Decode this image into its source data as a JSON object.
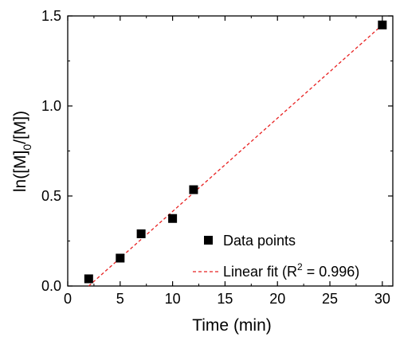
{
  "chart_data": {
    "type": "scatter",
    "xlabel": "Time (min)",
    "ylabel": {
      "main": "ln([M]",
      "sub": "0",
      "rest": "/[M])"
    },
    "xlim": [
      0,
      31
    ],
    "ylim": [
      0,
      1.5
    ],
    "x_ticks": [
      "0",
      "5",
      "10",
      "15",
      "20",
      "25",
      "30"
    ],
    "y_ticks": [
      "0.0",
      "0.5",
      "1.0",
      "1.5"
    ],
    "grid": false,
    "legend_position": "bottom-right",
    "series": [
      {
        "name": "Data points",
        "kind": "scatter",
        "color": "#000000",
        "marker": "square",
        "x": [
          2,
          5,
          7,
          10,
          12,
          30
        ],
        "y": [
          0.04,
          0.155,
          0.29,
          0.375,
          0.535,
          1.45
        ]
      },
      {
        "name": "Linear fit",
        "kind": "line",
        "color": "#e82020",
        "style": "dashed",
        "r_squared": "0.996",
        "x": [
          2,
          30
        ],
        "y": [
          0.0,
          1.45
        ]
      }
    ],
    "legend": {
      "points_label": "Data points",
      "fit_label_prefix": "Linear fit (R",
      "fit_label_sup": "2",
      "fit_label_suffix": " = 0.996)"
    }
  }
}
